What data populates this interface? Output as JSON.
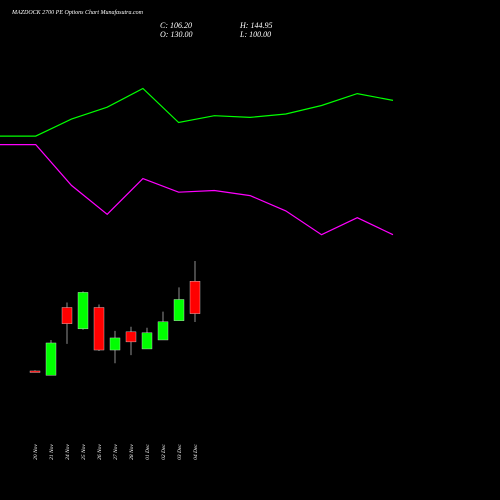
{
  "chart_data": [
    {
      "type": "candlestick",
      "title": "MAZDOCK 2700 PE Options Chart Munafasutra.com",
      "ohlc_labels": {
        "close": "C: 106.20",
        "high": "H: 144.95",
        "open": "O: 130.00",
        "low": "L: 100.00"
      },
      "categories": [
        "20 Nov",
        "21 Nov",
        "24 Nov",
        "25 Nov",
        "26 Nov",
        "27 Nov",
        "28 Nov",
        "01 Dec",
        "02 Dec",
        "03 Dec",
        "04 Dec"
      ],
      "open": [
        64,
        60.8,
        110.7,
        95,
        110.7,
        79.4,
        92.8,
        80.2,
        86.8,
        101,
        130
      ],
      "high": [
        64.5,
        86.8,
        114.4,
        122.6,
        112.9,
        93.5,
        96.5,
        95.8,
        107.7,
        125.5,
        144.95
      ],
      "low": [
        63,
        60.8,
        83.9,
        94.3,
        78.7,
        69.7,
        75.7,
        80.2,
        86.8,
        101,
        100
      ],
      "close": [
        63.5,
        84.6,
        98.8,
        121.8,
        79.4,
        88.3,
        85.4,
        92.1,
        100.2,
        116.6,
        106.2
      ],
      "up_color": "#00ff00",
      "down_color": "#ff0000",
      "ylim": [
        50,
        153
      ]
    },
    {
      "type": "line",
      "categories": [
        null,
        null,
        null,
        null,
        null,
        null,
        null,
        null,
        null,
        null,
        null,
        null
      ],
      "series": [
        {
          "color": "#00ff00",
          "values": [
            67,
            67,
            77,
            84,
            95,
            75,
            79,
            78,
            80,
            85,
            92,
            88
          ]
        },
        {
          "color": "#ff00ff",
          "values": [
            62,
            62,
            38,
            21,
            42,
            34,
            35,
            32,
            23,
            9,
            19,
            9
          ]
        }
      ],
      "ylim": [
        0,
        100
      ]
    }
  ]
}
